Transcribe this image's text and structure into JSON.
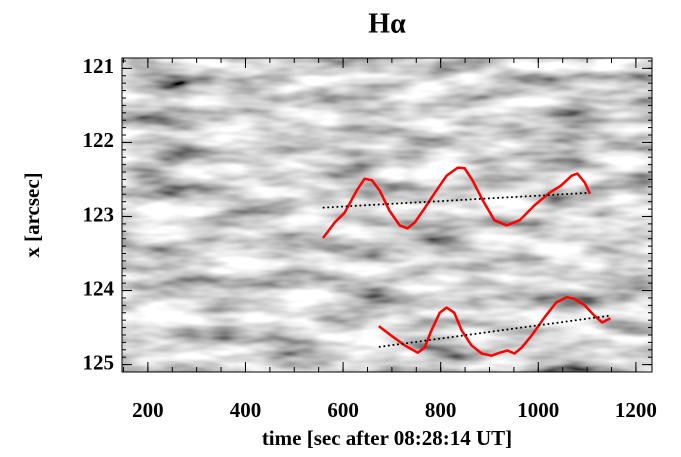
{
  "chart_data": {
    "type": "line",
    "title": "Hα",
    "x_label": "time [sec after 08:28:14 UT]",
    "y_label": "x [arcsec]",
    "xlim": [
      147,
      1233
    ],
    "xticks": [
      200,
      400,
      600,
      800,
      1000,
      1200
    ],
    "x_minor_step": 50,
    "ylim": [
      120.86,
      125.1
    ],
    "yticks": [
      121,
      122,
      123,
      124,
      125
    ],
    "y_minor_step": 0.1,
    "y_inverted": true,
    "series": [
      {
        "color": "#ff0000",
        "style": "solid",
        "x": [
          560,
          583,
          603,
          628,
          644,
          659,
          675,
          695,
          716,
          732,
          747,
          767,
          788,
          812,
          835,
          849,
          865,
          886,
          910,
          935,
          962,
          992,
          1023,
          1047,
          1068,
          1080,
          1095,
          1105
        ],
        "values": [
          123.28,
          123.08,
          122.95,
          122.65,
          122.49,
          122.51,
          122.65,
          122.92,
          123.12,
          123.16,
          123.08,
          122.89,
          122.68,
          122.45,
          122.34,
          122.35,
          122.51,
          122.78,
          123.05,
          123.12,
          123.05,
          122.85,
          122.68,
          122.58,
          122.45,
          122.42,
          122.54,
          122.68
        ]
      },
      {
        "color": "#000000",
        "style": "dotted",
        "x": [
          560,
          1105
        ],
        "values": [
          122.88,
          122.68
        ]
      },
      {
        "color": "#ff0000",
        "style": "solid",
        "x": [
          675,
          699,
          726,
          753,
          767,
          781,
          798,
          812,
          828,
          843,
          863,
          884,
          904,
          921,
          937,
          951,
          966,
          986,
          1013,
          1037,
          1058,
          1074,
          1095,
          1115,
          1131,
          1146
        ],
        "values": [
          124.49,
          124.61,
          124.74,
          124.84,
          124.77,
          124.54,
          124.3,
          124.23,
          124.3,
          124.54,
          124.74,
          124.85,
          124.88,
          124.84,
          124.81,
          124.85,
          124.77,
          124.61,
          124.36,
          124.16,
          124.09,
          124.11,
          124.2,
          124.34,
          124.43,
          124.38
        ]
      },
      {
        "color": "#000000",
        "style": "dotted",
        "x": [
          675,
          1146
        ],
        "values": [
          124.76,
          124.34
        ]
      }
    ]
  }
}
